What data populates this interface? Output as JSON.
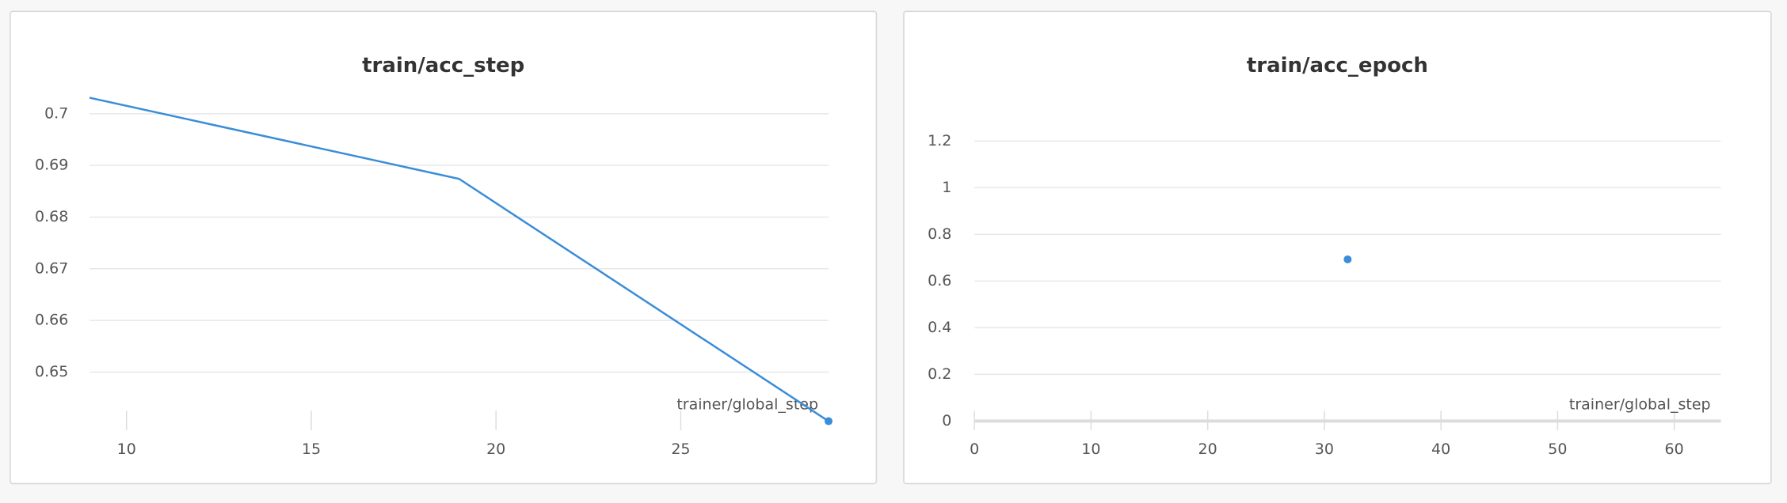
{
  "chart_data": [
    {
      "type": "line",
      "title": "train/acc_step",
      "x_label": "trainer/global_step",
      "x": [
        9,
        19,
        29
      ],
      "series": [
        {
          "color": "#3a8dd8",
          "values": [
            0.7031,
            0.6874,
            0.6405
          ]
        }
      ],
      "xlim": [
        9,
        29
      ],
      "xticks": [
        10,
        15,
        20,
        25
      ],
      "ylim": [
        0.64,
        0.704
      ],
      "yticks": [
        0.65,
        0.66,
        0.67,
        0.68,
        0.69,
        0.7
      ],
      "grid": true
    },
    {
      "type": "line",
      "title": "train/acc_epoch",
      "x_label": "trainer/global_step",
      "x": [
        32
      ],
      "series": [
        {
          "color": "#3a8dd8",
          "values": [
            0.693
          ]
        }
      ],
      "xlim": [
        0,
        64
      ],
      "xticks": [
        0,
        10,
        20,
        30,
        40,
        50,
        60
      ],
      "ylim": [
        0,
        1.3
      ],
      "yticks": [
        0,
        0.2,
        0.4,
        0.6,
        0.8,
        1,
        1.2
      ],
      "grid": true
    }
  ]
}
